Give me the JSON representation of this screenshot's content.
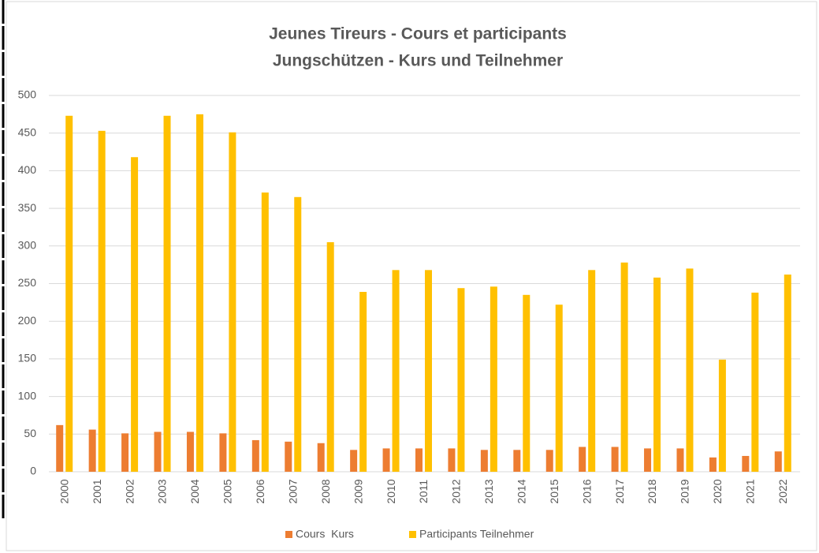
{
  "chart_data": {
    "type": "bar",
    "title": "Jeunes Tireurs - Cours et participants",
    "subtitle": "Jungschützen - Kurs und Teilnehmer",
    "categories": [
      "2000",
      "2001",
      "2002",
      "2003",
      "2004",
      "2005",
      "2006",
      "2007",
      "2008",
      "2009",
      "2010",
      "2011",
      "2012",
      "2013",
      "2014",
      "2015",
      "2016",
      "2017",
      "2018",
      "2019",
      "2020",
      "2021",
      "2022"
    ],
    "series": [
      {
        "name": "Cours  Kurs",
        "color": "#ed7d31",
        "values": [
          62,
          56,
          51,
          53,
          53,
          51,
          42,
          40,
          38,
          29,
          31,
          31,
          31,
          29,
          29,
          29,
          33,
          33,
          31,
          31,
          19,
          21,
          27
        ]
      },
      {
        "name": "Participants Teilnehmer",
        "color": "#ffc000",
        "values": [
          473,
          453,
          418,
          473,
          475,
          451,
          371,
          365,
          305,
          239,
          268,
          268,
          244,
          246,
          235,
          222,
          268,
          278,
          258,
          270,
          149,
          238,
          262
        ]
      }
    ],
    "ylim": [
      0,
      500
    ],
    "yticks": [
      0,
      50,
      100,
      150,
      200,
      250,
      300,
      350,
      400,
      450,
      500
    ],
    "grid": true,
    "legend": "bottom"
  }
}
